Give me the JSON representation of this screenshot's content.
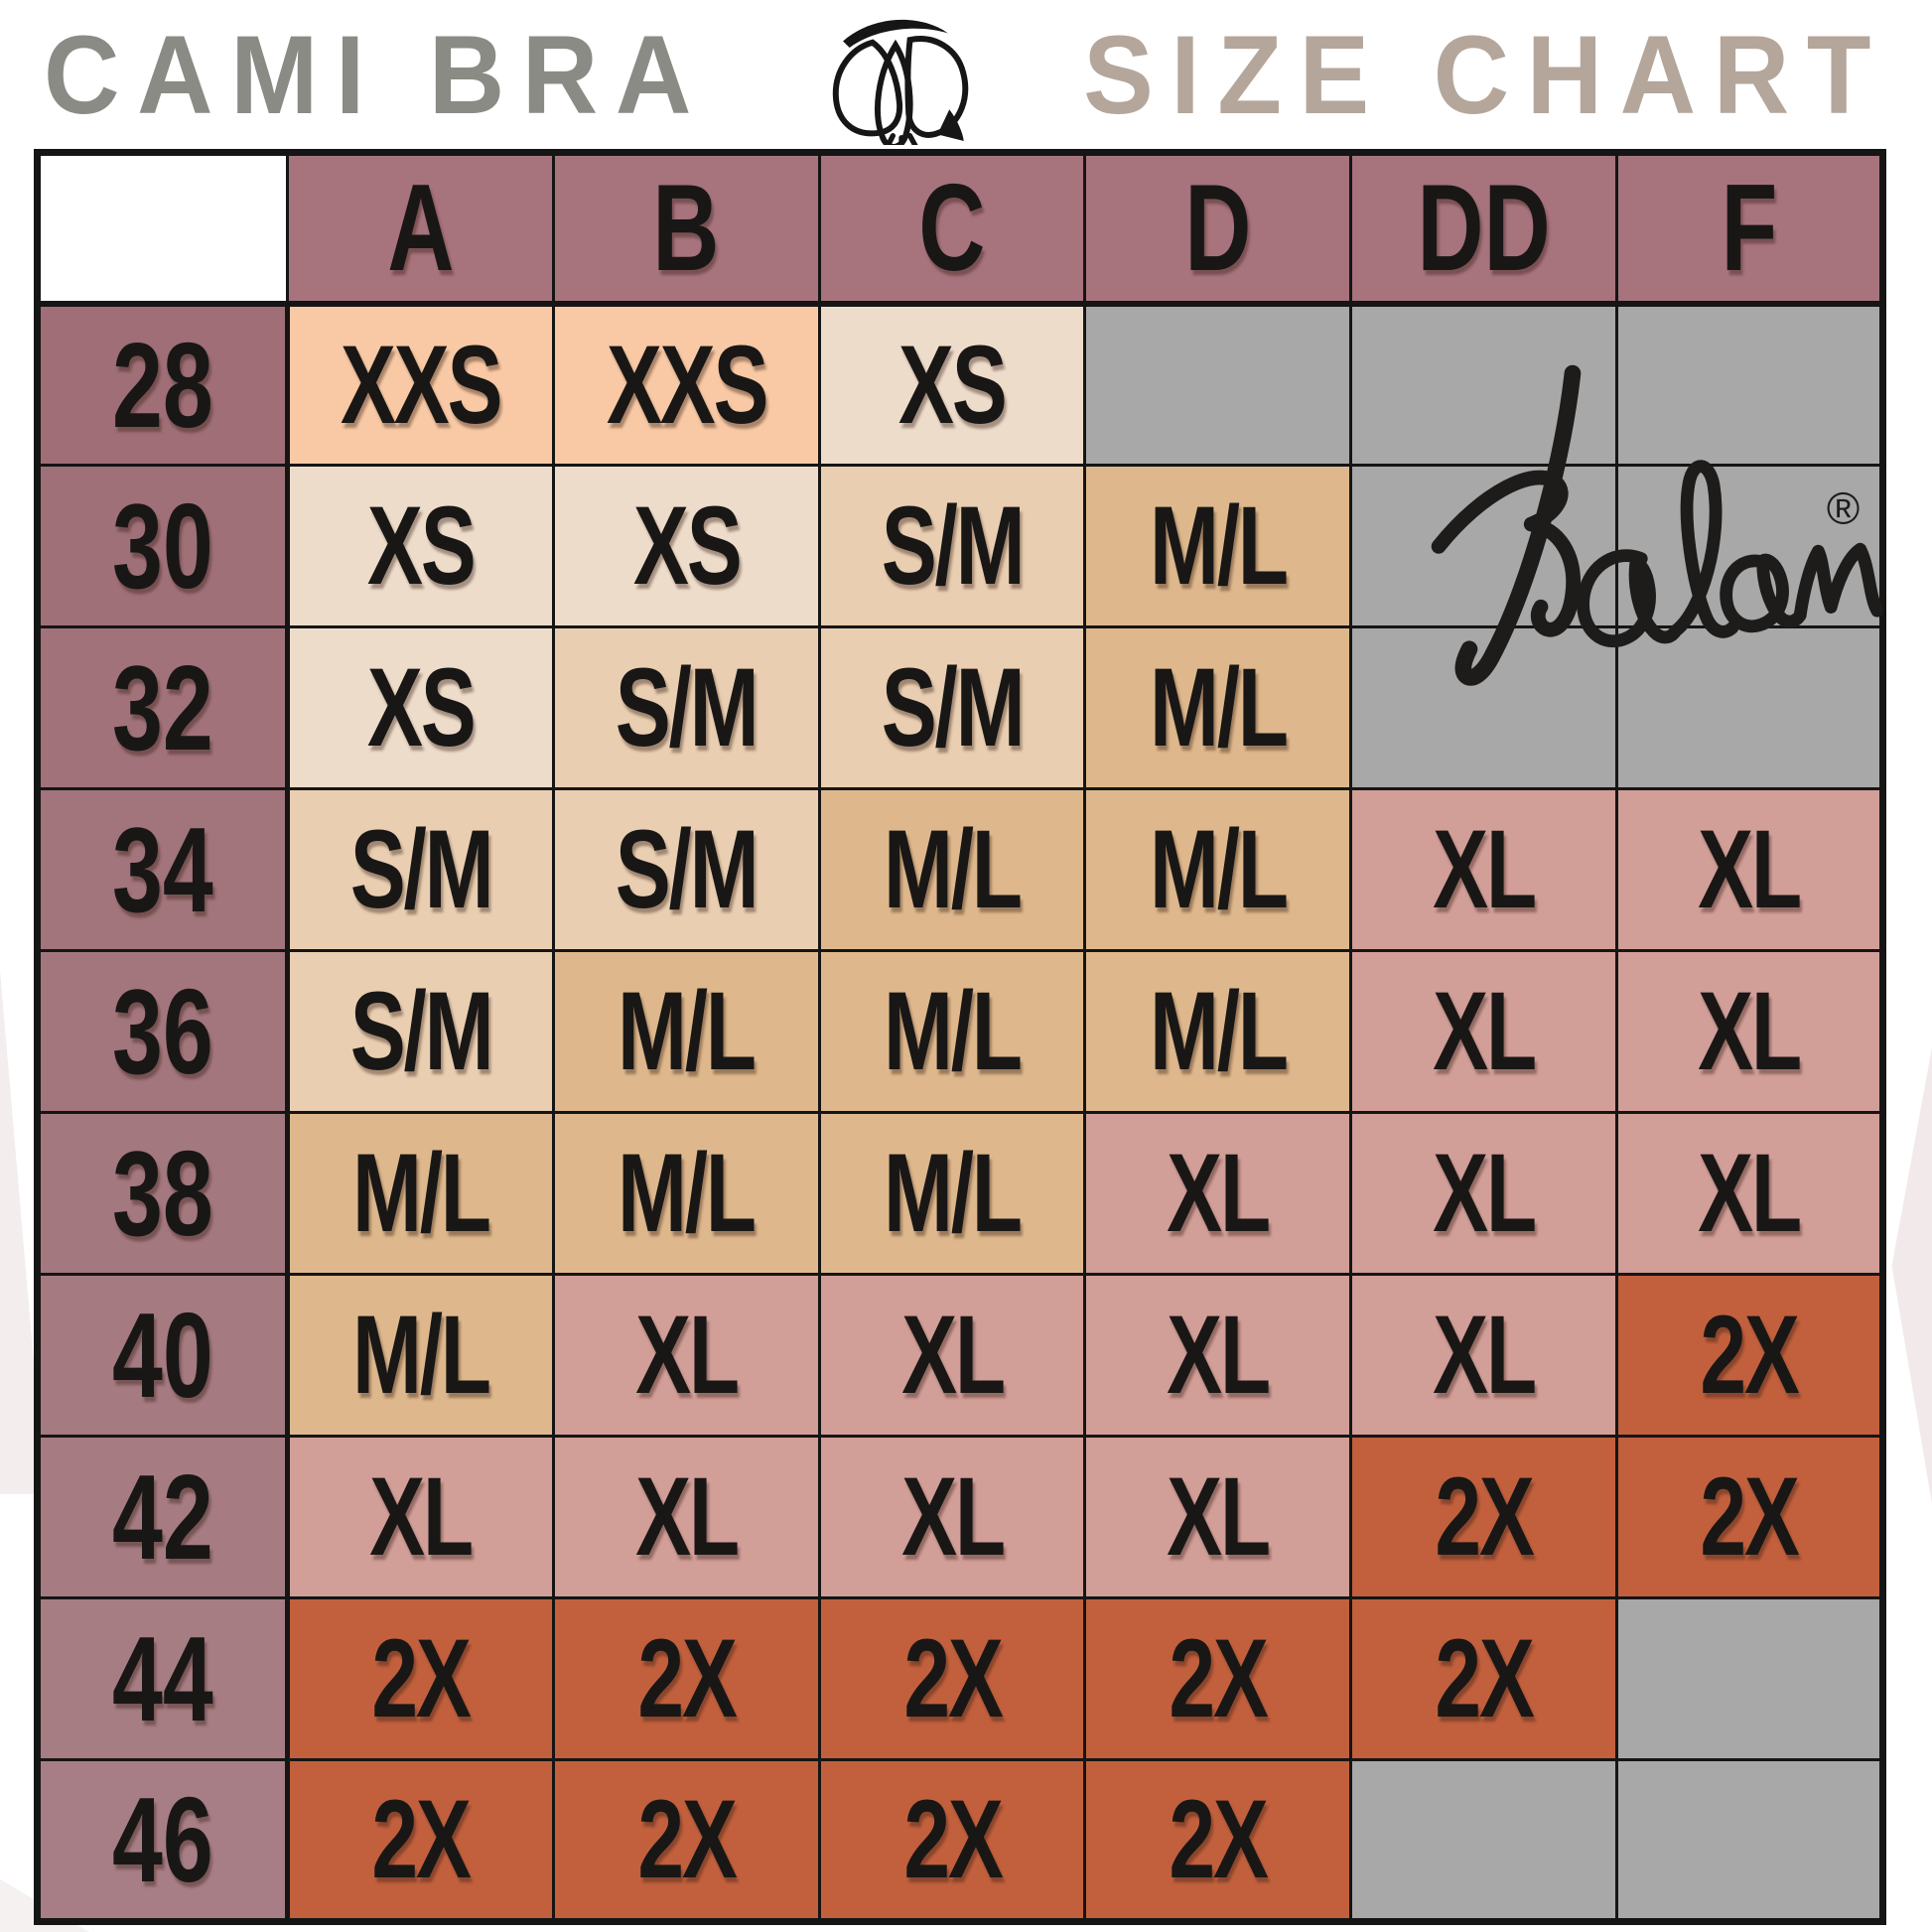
{
  "title": {
    "left": "CAMI BRA",
    "right": "SIZE CHART"
  },
  "brand": {
    "name": "Kalon",
    "registered": "®"
  },
  "icon": {
    "name": "cotton-boll-icon"
  },
  "colors": {
    "title_left": "#8b8b85",
    "title_right": "#b4a69a",
    "col_header_bg": "#a7737d",
    "row_header_bg": [
      "#9f6e76",
      "#a07078",
      "#a1727a",
      "#a2747b",
      "#a3767d",
      "#a4787f",
      "#a57a81",
      "#a67c82",
      "#a77d84",
      "#a87e86"
    ],
    "border": "#151515",
    "cell_text": "#181716",
    "peach": "#f8c9a4",
    "cream": "#eedcca",
    "lighttan": "#e9ceb1",
    "tan": "#deb88c",
    "rose": "#d29e98",
    "rust": "#c2603d",
    "gray": "#a8a8a8",
    "corner_bg": "#ffffff",
    "watermark": "#f3eded"
  },
  "chart_data": {
    "type": "table",
    "title": "CAMI BRA SIZE CHART",
    "columns": [
      "A",
      "B",
      "C",
      "D",
      "DD",
      "F"
    ],
    "row_labels": [
      "28",
      "30",
      "32",
      "34",
      "36",
      "38",
      "40",
      "42",
      "44",
      "46"
    ],
    "rows": [
      [
        {
          "v": "XXS",
          "c": "peach"
        },
        {
          "v": "XXS",
          "c": "peach"
        },
        {
          "v": "XS",
          "c": "cream"
        },
        {
          "v": "",
          "c": "gray"
        },
        {
          "v": "",
          "c": "gray"
        },
        {
          "v": "",
          "c": "gray"
        }
      ],
      [
        {
          "v": "XS",
          "c": "cream"
        },
        {
          "v": "XS",
          "c": "cream"
        },
        {
          "v": "S/M",
          "c": "lighttan"
        },
        {
          "v": "M/L",
          "c": "tan"
        },
        {
          "v": "",
          "c": "gray"
        },
        {
          "v": "",
          "c": "gray"
        }
      ],
      [
        {
          "v": "XS",
          "c": "cream"
        },
        {
          "v": "S/M",
          "c": "lighttan"
        },
        {
          "v": "S/M",
          "c": "lighttan"
        },
        {
          "v": "M/L",
          "c": "tan"
        },
        {
          "v": "",
          "c": "gray"
        },
        {
          "v": "",
          "c": "gray"
        }
      ],
      [
        {
          "v": "S/M",
          "c": "lighttan"
        },
        {
          "v": "S/M",
          "c": "lighttan"
        },
        {
          "v": "M/L",
          "c": "tan"
        },
        {
          "v": "M/L",
          "c": "tan"
        },
        {
          "v": "XL",
          "c": "rose"
        },
        {
          "v": "XL",
          "c": "rose"
        }
      ],
      [
        {
          "v": "S/M",
          "c": "lighttan"
        },
        {
          "v": "M/L",
          "c": "tan"
        },
        {
          "v": "M/L",
          "c": "tan"
        },
        {
          "v": "M/L",
          "c": "tan"
        },
        {
          "v": "XL",
          "c": "rose"
        },
        {
          "v": "XL",
          "c": "rose"
        }
      ],
      [
        {
          "v": "M/L",
          "c": "tan"
        },
        {
          "v": "M/L",
          "c": "tan"
        },
        {
          "v": "M/L",
          "c": "tan"
        },
        {
          "v": "XL",
          "c": "rose"
        },
        {
          "v": "XL",
          "c": "rose"
        },
        {
          "v": "XL",
          "c": "rose"
        }
      ],
      [
        {
          "v": "M/L",
          "c": "tan"
        },
        {
          "v": "XL",
          "c": "rose"
        },
        {
          "v": "XL",
          "c": "rose"
        },
        {
          "v": "XL",
          "c": "rose"
        },
        {
          "v": "XL",
          "c": "rose"
        },
        {
          "v": "2X",
          "c": "rust"
        }
      ],
      [
        {
          "v": "XL",
          "c": "rose"
        },
        {
          "v": "XL",
          "c": "rose"
        },
        {
          "v": "XL",
          "c": "rose"
        },
        {
          "v": "XL",
          "c": "rose"
        },
        {
          "v": "2X",
          "c": "rust"
        },
        {
          "v": "2X",
          "c": "rust"
        }
      ],
      [
        {
          "v": "2X",
          "c": "rust"
        },
        {
          "v": "2X",
          "c": "rust"
        },
        {
          "v": "2X",
          "c": "rust"
        },
        {
          "v": "2X",
          "c": "rust"
        },
        {
          "v": "2X",
          "c": "rust"
        },
        {
          "v": "",
          "c": "gray"
        }
      ],
      [
        {
          "v": "2X",
          "c": "rust"
        },
        {
          "v": "2X",
          "c": "rust"
        },
        {
          "v": "2X",
          "c": "rust"
        },
        {
          "v": "2X",
          "c": "rust"
        },
        {
          "v": "",
          "c": "gray"
        },
        {
          "v": "",
          "c": "gray"
        }
      ]
    ]
  }
}
